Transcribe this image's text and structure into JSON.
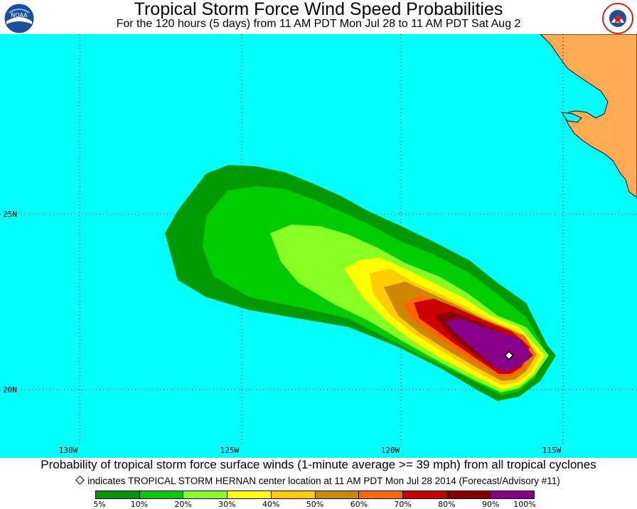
{
  "header": {
    "title": "Tropical Storm Force Wind Speed Probabilities",
    "subtitle": "For the 120 hours (5 days) from 11 AM PDT Mon Jul 28 to 11 AM PDT Sat Aug 2"
  },
  "logos": {
    "left": "NOAA",
    "right": "National Weather Service"
  },
  "map": {
    "ocean_color": "#00ffff",
    "land_color": "#ffaa55",
    "longitude_labels": [
      "130W",
      "125W",
      "120W",
      "115W"
    ],
    "latitude_labels": [
      "25N",
      "20N"
    ],
    "storm_center_icon": "diamond-icon"
  },
  "footer": {
    "line1": "Probability of tropical storm force surface winds (1-minute average >= 39 mph) from all tropical cyclones",
    "line2": "indicates TROPICAL STORM HERNAN center location at 11 AM PDT Mon Jul 28 2014 (Forecast/Advisory #11)"
  },
  "legend": {
    "colors": [
      "#009900",
      "#00cc00",
      "#88ff22",
      "#ffff00",
      "#ffcc00",
      "#cc8800",
      "#ff6600",
      "#cc0000",
      "#880000",
      "#880088"
    ],
    "labels": [
      "5%",
      "10%",
      "20%",
      "30%",
      "40%",
      "50%",
      "60%",
      "70%",
      "80%",
      "90%",
      "100%"
    ]
  }
}
